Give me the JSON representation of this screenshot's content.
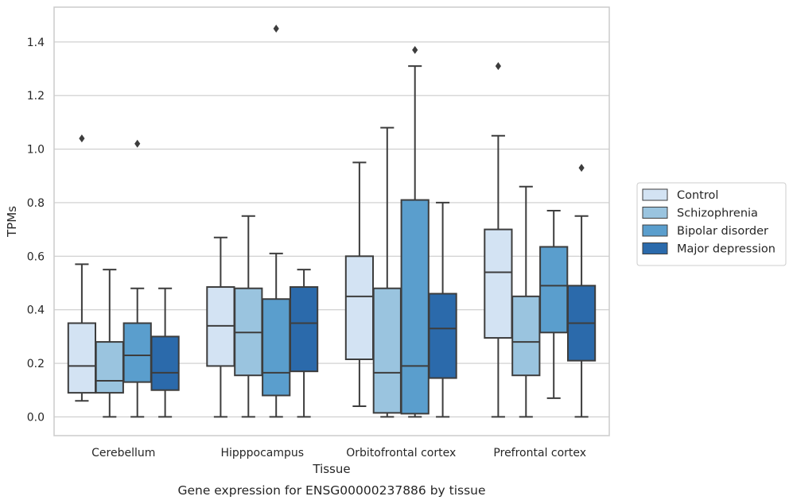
{
  "chart_data": {
    "type": "boxplot",
    "xlabel": "Tissue",
    "ylabel": "TPMs",
    "caption": "Gene expression for ENSG00000237886 by tissue",
    "ylim": [
      -0.07,
      1.53
    ],
    "yticks": [
      0.0,
      0.2,
      0.4,
      0.6,
      0.8,
      1.0,
      1.2,
      1.4
    ],
    "ytick_labels": [
      "0.0",
      "0.2",
      "0.4",
      "0.6",
      "0.8",
      "1.0",
      "1.2",
      "1.4"
    ],
    "grid": "horizontal",
    "legend_position": "right, outside",
    "categories": [
      "Cerebellum",
      "Hipppocampus",
      "Orbitofrontal cortex",
      "Prefrontal cortex"
    ],
    "series": [
      {
        "name": "Control",
        "color": "#d3e3f3",
        "boxes": [
          {
            "whisker_low": 0.06,
            "q1": 0.09,
            "median": 0.19,
            "q3": 0.35,
            "whisker_high": 0.57,
            "outliers": [
              1.04
            ]
          },
          {
            "whisker_low": 0.0,
            "q1": 0.19,
            "median": 0.34,
            "q3": 0.485,
            "whisker_high": 0.67,
            "outliers": []
          },
          {
            "whisker_low": 0.04,
            "q1": 0.215,
            "median": 0.45,
            "q3": 0.6,
            "whisker_high": 0.95,
            "outliers": []
          },
          {
            "whisker_low": 0.0,
            "q1": 0.295,
            "median": 0.54,
            "q3": 0.7,
            "whisker_high": 1.05,
            "outliers": [
              1.31
            ]
          }
        ]
      },
      {
        "name": "Schizophrenia",
        "color": "#9ac4df",
        "boxes": [
          {
            "whisker_low": 0.0,
            "q1": 0.09,
            "median": 0.135,
            "q3": 0.28,
            "whisker_high": 0.55,
            "outliers": []
          },
          {
            "whisker_low": 0.0,
            "q1": 0.155,
            "median": 0.315,
            "q3": 0.48,
            "whisker_high": 0.75,
            "outliers": []
          },
          {
            "whisker_low": 0.0,
            "q1": 0.015,
            "median": 0.165,
            "q3": 0.48,
            "whisker_high": 1.08,
            "outliers": []
          },
          {
            "whisker_low": 0.0,
            "q1": 0.155,
            "median": 0.28,
            "q3": 0.45,
            "whisker_high": 0.86,
            "outliers": []
          }
        ]
      },
      {
        "name": "Bipolar disorder",
        "color": "#5a9ecd",
        "boxes": [
          {
            "whisker_low": 0.0,
            "q1": 0.13,
            "median": 0.23,
            "q3": 0.35,
            "whisker_high": 0.48,
            "outliers": [
              1.02
            ]
          },
          {
            "whisker_low": 0.0,
            "q1": 0.08,
            "median": 0.165,
            "q3": 0.44,
            "whisker_high": 0.61,
            "outliers": [
              1.45
            ]
          },
          {
            "whisker_low": 0.0,
            "q1": 0.012,
            "median": 0.19,
            "q3": 0.81,
            "whisker_high": 1.31,
            "outliers": [
              1.37
            ]
          },
          {
            "whisker_low": 0.07,
            "q1": 0.315,
            "median": 0.49,
            "q3": 0.635,
            "whisker_high": 0.77,
            "outliers": []
          }
        ]
      },
      {
        "name": "Major depression",
        "color": "#2b6aab",
        "boxes": [
          {
            "whisker_low": 0.0,
            "q1": 0.1,
            "median": 0.165,
            "q3": 0.3,
            "whisker_high": 0.48,
            "outliers": []
          },
          {
            "whisker_low": 0.0,
            "q1": 0.17,
            "median": 0.35,
            "q3": 0.485,
            "whisker_high": 0.55,
            "outliers": []
          },
          {
            "whisker_low": 0.0,
            "q1": 0.145,
            "median": 0.33,
            "q3": 0.46,
            "whisker_high": 0.8,
            "outliers": []
          },
          {
            "whisker_low": 0.0,
            "q1": 0.21,
            "median": 0.35,
            "q3": 0.49,
            "whisker_high": 0.75,
            "outliers": [
              0.93
            ]
          }
        ]
      }
    ]
  }
}
